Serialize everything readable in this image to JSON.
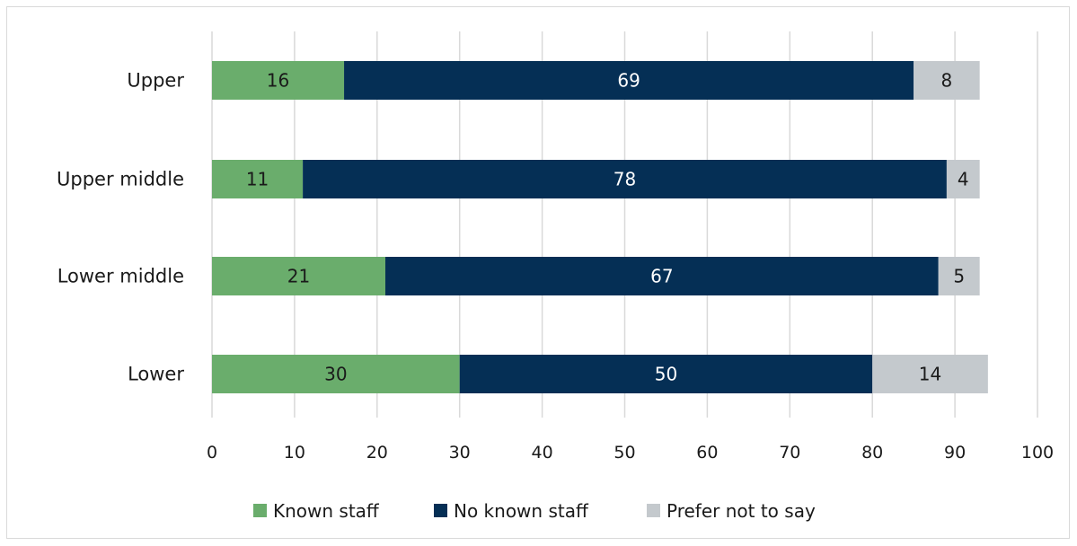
{
  "chart_data": {
    "type": "bar",
    "orientation": "horizontal",
    "stacked": true,
    "categories": [
      "Upper",
      "Upper middle",
      "Lower middle",
      "Lower"
    ],
    "series": [
      {
        "name": "Known staff",
        "values": [
          16,
          11,
          21,
          30
        ],
        "color": "#6aad6c",
        "label_color": "#1a1a1a"
      },
      {
        "name": "No known staff",
        "values": [
          69,
          78,
          67,
          50
        ],
        "color": "#052f55",
        "label_color": "#ffffff"
      },
      {
        "name": "Prefer not to say",
        "values": [
          8,
          4,
          5,
          14
        ],
        "color": "#c4c9cd",
        "label_color": "#1a1a1a"
      }
    ],
    "x_ticks": [
      "0",
      "10",
      "20",
      "30",
      "40",
      "50",
      "60",
      "70",
      "80",
      "90",
      "100"
    ],
    "xlim": [
      0,
      100
    ],
    "grid": "vertical",
    "legend_position": "bottom",
    "colors": {
      "gridline": "#d9d9d9",
      "text": "#1a1a1a"
    }
  }
}
